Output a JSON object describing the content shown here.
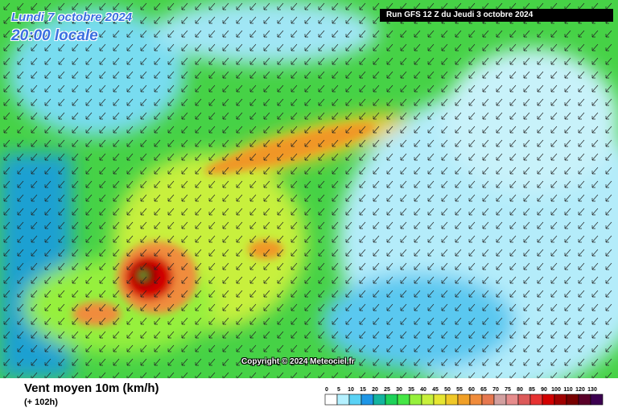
{
  "header": {
    "date": "Lundi 7 octobre 2024",
    "time": "20:00 locale",
    "run": "Run GFS 12 Z du Jeudi 3 octobre 2024"
  },
  "footer": {
    "copyright": "Copyright © 2024 Meteociel.fr",
    "caption": "Vent moyen 10m (km/h)",
    "lead": "(+ 102h)"
  },
  "legend": {
    "ticks": [
      0,
      5,
      10,
      15,
      20,
      25,
      30,
      35,
      40,
      45,
      50,
      55,
      60,
      65,
      70,
      75,
      80,
      85,
      90,
      100,
      110,
      120,
      130
    ],
    "colors": [
      "#ffffff",
      "#b4f0ff",
      "#5ad2f5",
      "#1e96e6",
      "#14b4a0",
      "#1ed25a",
      "#46e646",
      "#96f03c",
      "#c8f03c",
      "#e6e632",
      "#f0c828",
      "#f0a028",
      "#f08c3c",
      "#e67850",
      "#d2a0a0",
      "#e68c8c",
      "#dc5a5a",
      "#e63232",
      "#d20000",
      "#a00000",
      "#780000",
      "#5a0028",
      "#3c0050"
    ]
  }
}
